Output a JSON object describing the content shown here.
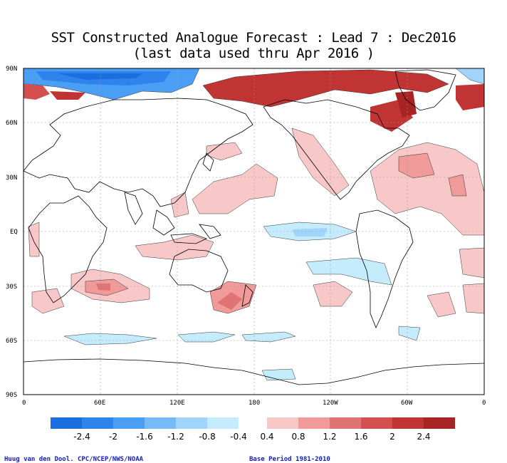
{
  "title_line1": "SST Constructed Analogue Forecast : Lead 7 : Dec2016",
  "title_line2": "(last data used thru Apr 2016 )",
  "lat_ticks": [
    "90N",
    "60N",
    "30N",
    "EQ",
    "30S",
    "60S",
    "90S"
  ],
  "lon_ticks": [
    "0",
    "60E",
    "120E",
    "180",
    "120W",
    "60W",
    "0"
  ],
  "colorbar": {
    "neg_labels": [
      "-2.4",
      "-2",
      "-1.6",
      "-1.2",
      "-0.8",
      "-0.4"
    ],
    "pos_labels": [
      "0.4",
      "0.8",
      "1.2",
      "1.6",
      "2",
      "2.4"
    ],
    "neg_colors": [
      "#1a6ee0",
      "#2e84ec",
      "#4a9ef4",
      "#78baf8",
      "#a0d4fb",
      "#c4ecfd"
    ],
    "pos_colors": [
      "#f8c8c8",
      "#f09a9a",
      "#e07474",
      "#d45050",
      "#c03434",
      "#a82424"
    ]
  },
  "credit_left": "Huug van den Dool. CPC/NCEP/NWS/NOAA",
  "credit_right": "Base Period 1981-2010"
}
